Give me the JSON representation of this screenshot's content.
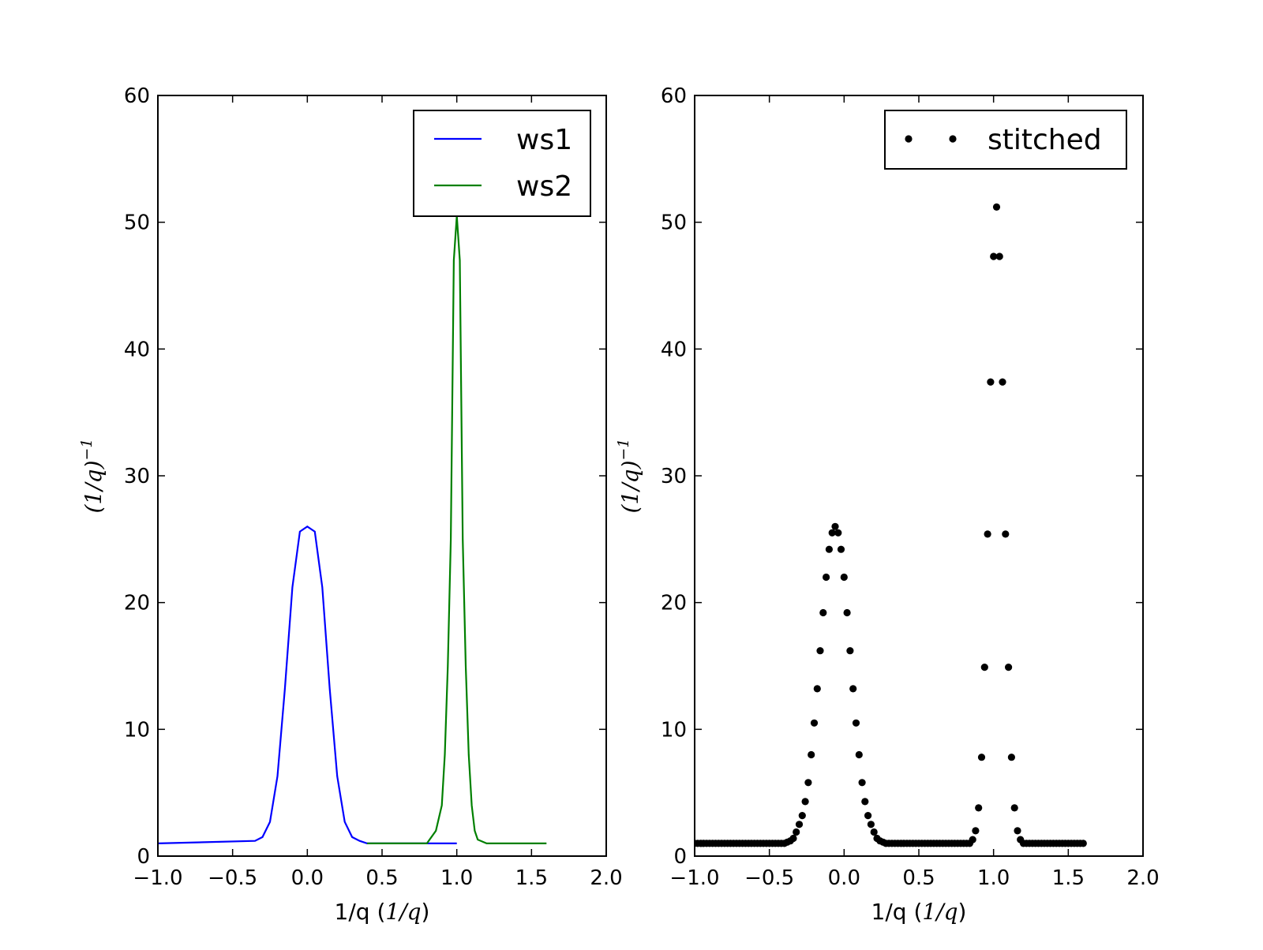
{
  "chart_data": [
    {
      "type": "line",
      "title": "",
      "xlabel": {
        "text": "1/q",
        "unit": "1/q"
      },
      "ylabel": {
        "base": "(1/q)",
        "exponent": "−1"
      },
      "xlim": [
        -1.0,
        2.0
      ],
      "ylim": [
        0,
        60
      ],
      "xticks": [
        -1.0,
        -0.5,
        0.0,
        0.5,
        1.0,
        1.5,
        2.0
      ],
      "xtick_labels": [
        "−1.0",
        "−0.5",
        "0.0",
        "0.5",
        "1.0",
        "1.5",
        "2.0"
      ],
      "yticks": [
        0,
        10,
        20,
        30,
        40,
        50,
        60
      ],
      "ytick_labels": [
        "0",
        "10",
        "20",
        "30",
        "40",
        "50",
        "60"
      ],
      "grid": false,
      "legend": "top-right",
      "series": [
        {
          "name": "ws1",
          "color": "#0000ff",
          "style": "line",
          "x": [
            -1.0,
            -0.35,
            -0.3,
            -0.25,
            -0.2,
            -0.15,
            -0.1,
            -0.05,
            0.0,
            0.05,
            0.1,
            0.15,
            0.2,
            0.25,
            0.3,
            0.35,
            0.4,
            0.45,
            0.5,
            0.55,
            0.6,
            0.65,
            0.7,
            0.75,
            0.8,
            0.85,
            0.9,
            0.95,
            1.0
          ],
          "y": [
            1.0,
            1.2,
            1.5,
            2.7,
            6.3,
            13.2,
            21.2,
            25.6,
            26.0,
            25.6,
            21.2,
            13.2,
            6.3,
            2.7,
            1.5,
            1.2,
            1.0,
            1.0,
            1.0,
            1.0,
            1.0,
            1.0,
            1.0,
            1.0,
            1.0,
            1.0,
            1.0,
            1.0,
            1.0
          ]
        },
        {
          "name": "ws2",
          "color": "#008000",
          "style": "line",
          "x": [
            0.4,
            0.8,
            0.86,
            0.9,
            0.92,
            0.94,
            0.96,
            0.98,
            1.0,
            1.02,
            1.04,
            1.06,
            1.08,
            1.1,
            1.12,
            1.14,
            1.2,
            1.6
          ],
          "y": [
            1.0,
            1.0,
            2.0,
            4.0,
            8.0,
            15.0,
            25.0,
            47.0,
            50.5,
            47.0,
            25.0,
            15.0,
            8.0,
            4.0,
            2.0,
            1.3,
            1.0,
            1.0
          ]
        }
      ]
    },
    {
      "type": "scatter",
      "title": "",
      "xlabel": {
        "text": "1/q",
        "unit": "1/q"
      },
      "ylabel": {
        "base": "(1/q)",
        "exponent": "−1"
      },
      "xlim": [
        -1.0,
        2.0
      ],
      "ylim": [
        0,
        60
      ],
      "xticks": [
        -1.0,
        -0.5,
        0.0,
        0.5,
        1.0,
        1.5,
        2.0
      ],
      "xtick_labels": [
        "−1.0",
        "−0.5",
        "0.0",
        "0.5",
        "1.0",
        "1.5",
        "2.0"
      ],
      "yticks": [
        0,
        10,
        20,
        30,
        40,
        50,
        60
      ],
      "ytick_labels": [
        "0",
        "10",
        "20",
        "30",
        "40",
        "50",
        "60"
      ],
      "grid": false,
      "legend": "top-right",
      "series": [
        {
          "name": "stitched",
          "color": "#000000",
          "style": "points",
          "x": [
            -1.0,
            -0.98,
            -0.96,
            -0.94,
            -0.92,
            -0.9,
            -0.88,
            -0.86,
            -0.84,
            -0.82,
            -0.8,
            -0.78,
            -0.76,
            -0.74,
            -0.72,
            -0.7,
            -0.68,
            -0.66,
            -0.64,
            -0.62,
            -0.6,
            -0.58,
            -0.56,
            -0.54,
            -0.52,
            -0.5,
            -0.48,
            -0.46,
            -0.44,
            -0.42,
            -0.4,
            -0.38,
            -0.36,
            -0.34,
            -0.32,
            -0.3,
            -0.28,
            -0.26,
            -0.24,
            -0.22,
            -0.2,
            -0.18,
            -0.16,
            -0.14,
            -0.12,
            -0.1,
            -0.08,
            -0.06,
            -0.04,
            -0.02,
            0.0,
            0.02,
            0.04,
            0.06,
            0.08,
            0.1,
            0.12,
            0.14,
            0.16,
            0.18,
            0.2,
            0.22,
            0.24,
            0.26,
            0.28,
            0.3,
            0.32,
            0.34,
            0.36,
            0.38,
            0.4,
            0.42,
            0.44,
            0.46,
            0.48,
            0.5,
            0.52,
            0.54,
            0.56,
            0.58,
            0.6,
            0.62,
            0.64,
            0.66,
            0.68,
            0.7,
            0.72,
            0.74,
            0.76,
            0.78,
            0.8,
            0.82,
            0.84,
            0.86,
            0.88,
            0.9,
            0.92,
            0.94,
            0.96,
            0.98,
            1.0,
            1.02,
            1.04,
            1.06,
            1.08,
            1.1,
            1.12,
            1.14,
            1.16,
            1.18,
            1.2,
            1.22,
            1.24,
            1.26,
            1.28,
            1.3,
            1.32,
            1.34,
            1.36,
            1.38,
            1.4,
            1.42,
            1.44,
            1.46,
            1.48,
            1.5,
            1.52,
            1.54,
            1.56,
            1.58,
            1.6
          ],
          "y": [
            1.0,
            1.0,
            1.0,
            1.0,
            1.0,
            1.0,
            1.0,
            1.0,
            1.0,
            1.0,
            1.0,
            1.0,
            1.0,
            1.0,
            1.0,
            1.0,
            1.0,
            1.0,
            1.0,
            1.0,
            1.0,
            1.0,
            1.0,
            1.0,
            1.0,
            1.0,
            1.0,
            1.0,
            1.0,
            1.0,
            1.0,
            1.1,
            1.2,
            1.4,
            1.9,
            2.5,
            3.2,
            4.3,
            5.8,
            8.0,
            10.5,
            13.2,
            16.2,
            19.2,
            22.0,
            24.2,
            25.5,
            26.0,
            25.5,
            24.2,
            22.0,
            19.2,
            16.2,
            13.2,
            10.5,
            8.0,
            5.8,
            4.3,
            3.2,
            2.5,
            1.9,
            1.4,
            1.2,
            1.1,
            1.0,
            1.0,
            1.0,
            1.0,
            1.0,
            1.0,
            1.0,
            1.0,
            1.0,
            1.0,
            1.0,
            1.0,
            1.0,
            1.0,
            1.0,
            1.0,
            1.0,
            1.0,
            1.0,
            1.0,
            1.0,
            1.0,
            1.0,
            1.0,
            1.0,
            1.0,
            1.0,
            1.0,
            1.0,
            1.3,
            2.0,
            3.8,
            7.8,
            14.9,
            25.4,
            37.4,
            47.3,
            51.2,
            47.3,
            37.4,
            25.4,
            14.9,
            7.8,
            3.8,
            2.0,
            1.3,
            1.0,
            1.0,
            1.0,
            1.0,
            1.0,
            1.0,
            1.0,
            1.0,
            1.0,
            1.0,
            1.0,
            1.0,
            1.0,
            1.0,
            1.0,
            1.0,
            1.0,
            1.0,
            1.0,
            1.0,
            1.0
          ]
        }
      ]
    }
  ]
}
